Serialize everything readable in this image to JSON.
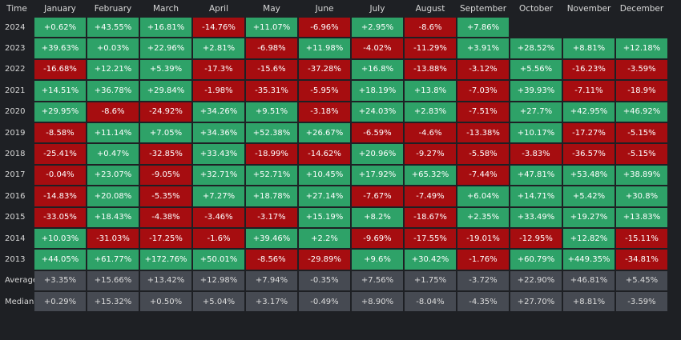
{
  "header": {
    "corner": "Time",
    "months": [
      "January",
      "February",
      "March",
      "April",
      "May",
      "June",
      "July",
      "August",
      "September",
      "October",
      "November",
      "December"
    ]
  },
  "rows": [
    {
      "label": "2024",
      "values": [
        "+0.62%",
        "+43.55%",
        "+16.81%",
        "-14.76%",
        "+11.07%",
        "-6.96%",
        "+2.95%",
        "-8.6%",
        "+7.86%",
        "",
        "",
        ""
      ]
    },
    {
      "label": "2023",
      "values": [
        "+39.63%",
        "+0.03%",
        "+22.96%",
        "+2.81%",
        "-6.98%",
        "+11.98%",
        "-4.02%",
        "-11.29%",
        "+3.91%",
        "+28.52%",
        "+8.81%",
        "+12.18%"
      ]
    },
    {
      "label": "2022",
      "values": [
        "-16.68%",
        "+12.21%",
        "+5.39%",
        "-17.3%",
        "-15.6%",
        "-37.28%",
        "+16.8%",
        "-13.88%",
        "-3.12%",
        "+5.56%",
        "-16.23%",
        "-3.59%"
      ]
    },
    {
      "label": "2021",
      "values": [
        "+14.51%",
        "+36.78%",
        "+29.84%",
        "-1.98%",
        "-35.31%",
        "-5.95%",
        "+18.19%",
        "+13.8%",
        "-7.03%",
        "+39.93%",
        "-7.11%",
        "-18.9%"
      ]
    },
    {
      "label": "2020",
      "values": [
        "+29.95%",
        "-8.6%",
        "-24.92%",
        "+34.26%",
        "+9.51%",
        "-3.18%",
        "+24.03%",
        "+2.83%",
        "-7.51%",
        "+27.7%",
        "+42.95%",
        "+46.92%"
      ]
    },
    {
      "label": "2019",
      "values": [
        "-8.58%",
        "+11.14%",
        "+7.05%",
        "+34.36%",
        "+52.38%",
        "+26.67%",
        "-6.59%",
        "-4.6%",
        "-13.38%",
        "+10.17%",
        "-17.27%",
        "-5.15%"
      ]
    },
    {
      "label": "2018",
      "values": [
        "-25.41%",
        "+0.47%",
        "-32.85%",
        "+33.43%",
        "-18.99%",
        "-14.62%",
        "+20.96%",
        "-9.27%",
        "-5.58%",
        "-3.83%",
        "-36.57%",
        "-5.15%"
      ]
    },
    {
      "label": "2017",
      "values": [
        "-0.04%",
        "+23.07%",
        "-9.05%",
        "+32.71%",
        "+52.71%",
        "+10.45%",
        "+17.92%",
        "+65.32%",
        "-7.44%",
        "+47.81%",
        "+53.48%",
        "+38.89%"
      ]
    },
    {
      "label": "2016",
      "values": [
        "-14.83%",
        "+20.08%",
        "-5.35%",
        "+7.27%",
        "+18.78%",
        "+27.14%",
        "-7.67%",
        "-7.49%",
        "+6.04%",
        "+14.71%",
        "+5.42%",
        "+30.8%"
      ]
    },
    {
      "label": "2015",
      "values": [
        "-33.05%",
        "+18.43%",
        "-4.38%",
        "-3.46%",
        "-3.17%",
        "+15.19%",
        "+8.2%",
        "-18.67%",
        "+2.35%",
        "+33.49%",
        "+19.27%",
        "+13.83%"
      ]
    },
    {
      "label": "2014",
      "values": [
        "+10.03%",
        "-31.03%",
        "-17.25%",
        "-1.6%",
        "+39.46%",
        "+2.2%",
        "-9.69%",
        "-17.55%",
        "-19.01%",
        "-12.95%",
        "+12.82%",
        "-15.11%"
      ]
    },
    {
      "label": "2013",
      "values": [
        "+44.05%",
        "+61.77%",
        "+172.76%",
        "+50.01%",
        "-8.56%",
        "-29.89%",
        "+9.6%",
        "+30.42%",
        "-1.76%",
        "+60.79%",
        "+449.35%",
        "-34.81%"
      ]
    }
  ],
  "stats": [
    {
      "label": "Average",
      "values": [
        "+3.35%",
        "+15.66%",
        "+13.42%",
        "+12.98%",
        "+7.94%",
        "-0.35%",
        "+7.56%",
        "+1.75%",
        "-3.72%",
        "+22.90%",
        "+46.81%",
        "+5.45%"
      ]
    },
    {
      "label": "Median",
      "values": [
        "+0.29%",
        "+15.32%",
        "+0.50%",
        "+5.04%",
        "+3.17%",
        "-0.49%",
        "+8.90%",
        "-8.04%",
        "-4.35%",
        "+27.70%",
        "+8.81%",
        "-3.59%"
      ]
    }
  ],
  "colors": {
    "positive": "#2ea268",
    "negative": "#a60d10",
    "stat": "#464a52",
    "background": "#1e2024"
  }
}
